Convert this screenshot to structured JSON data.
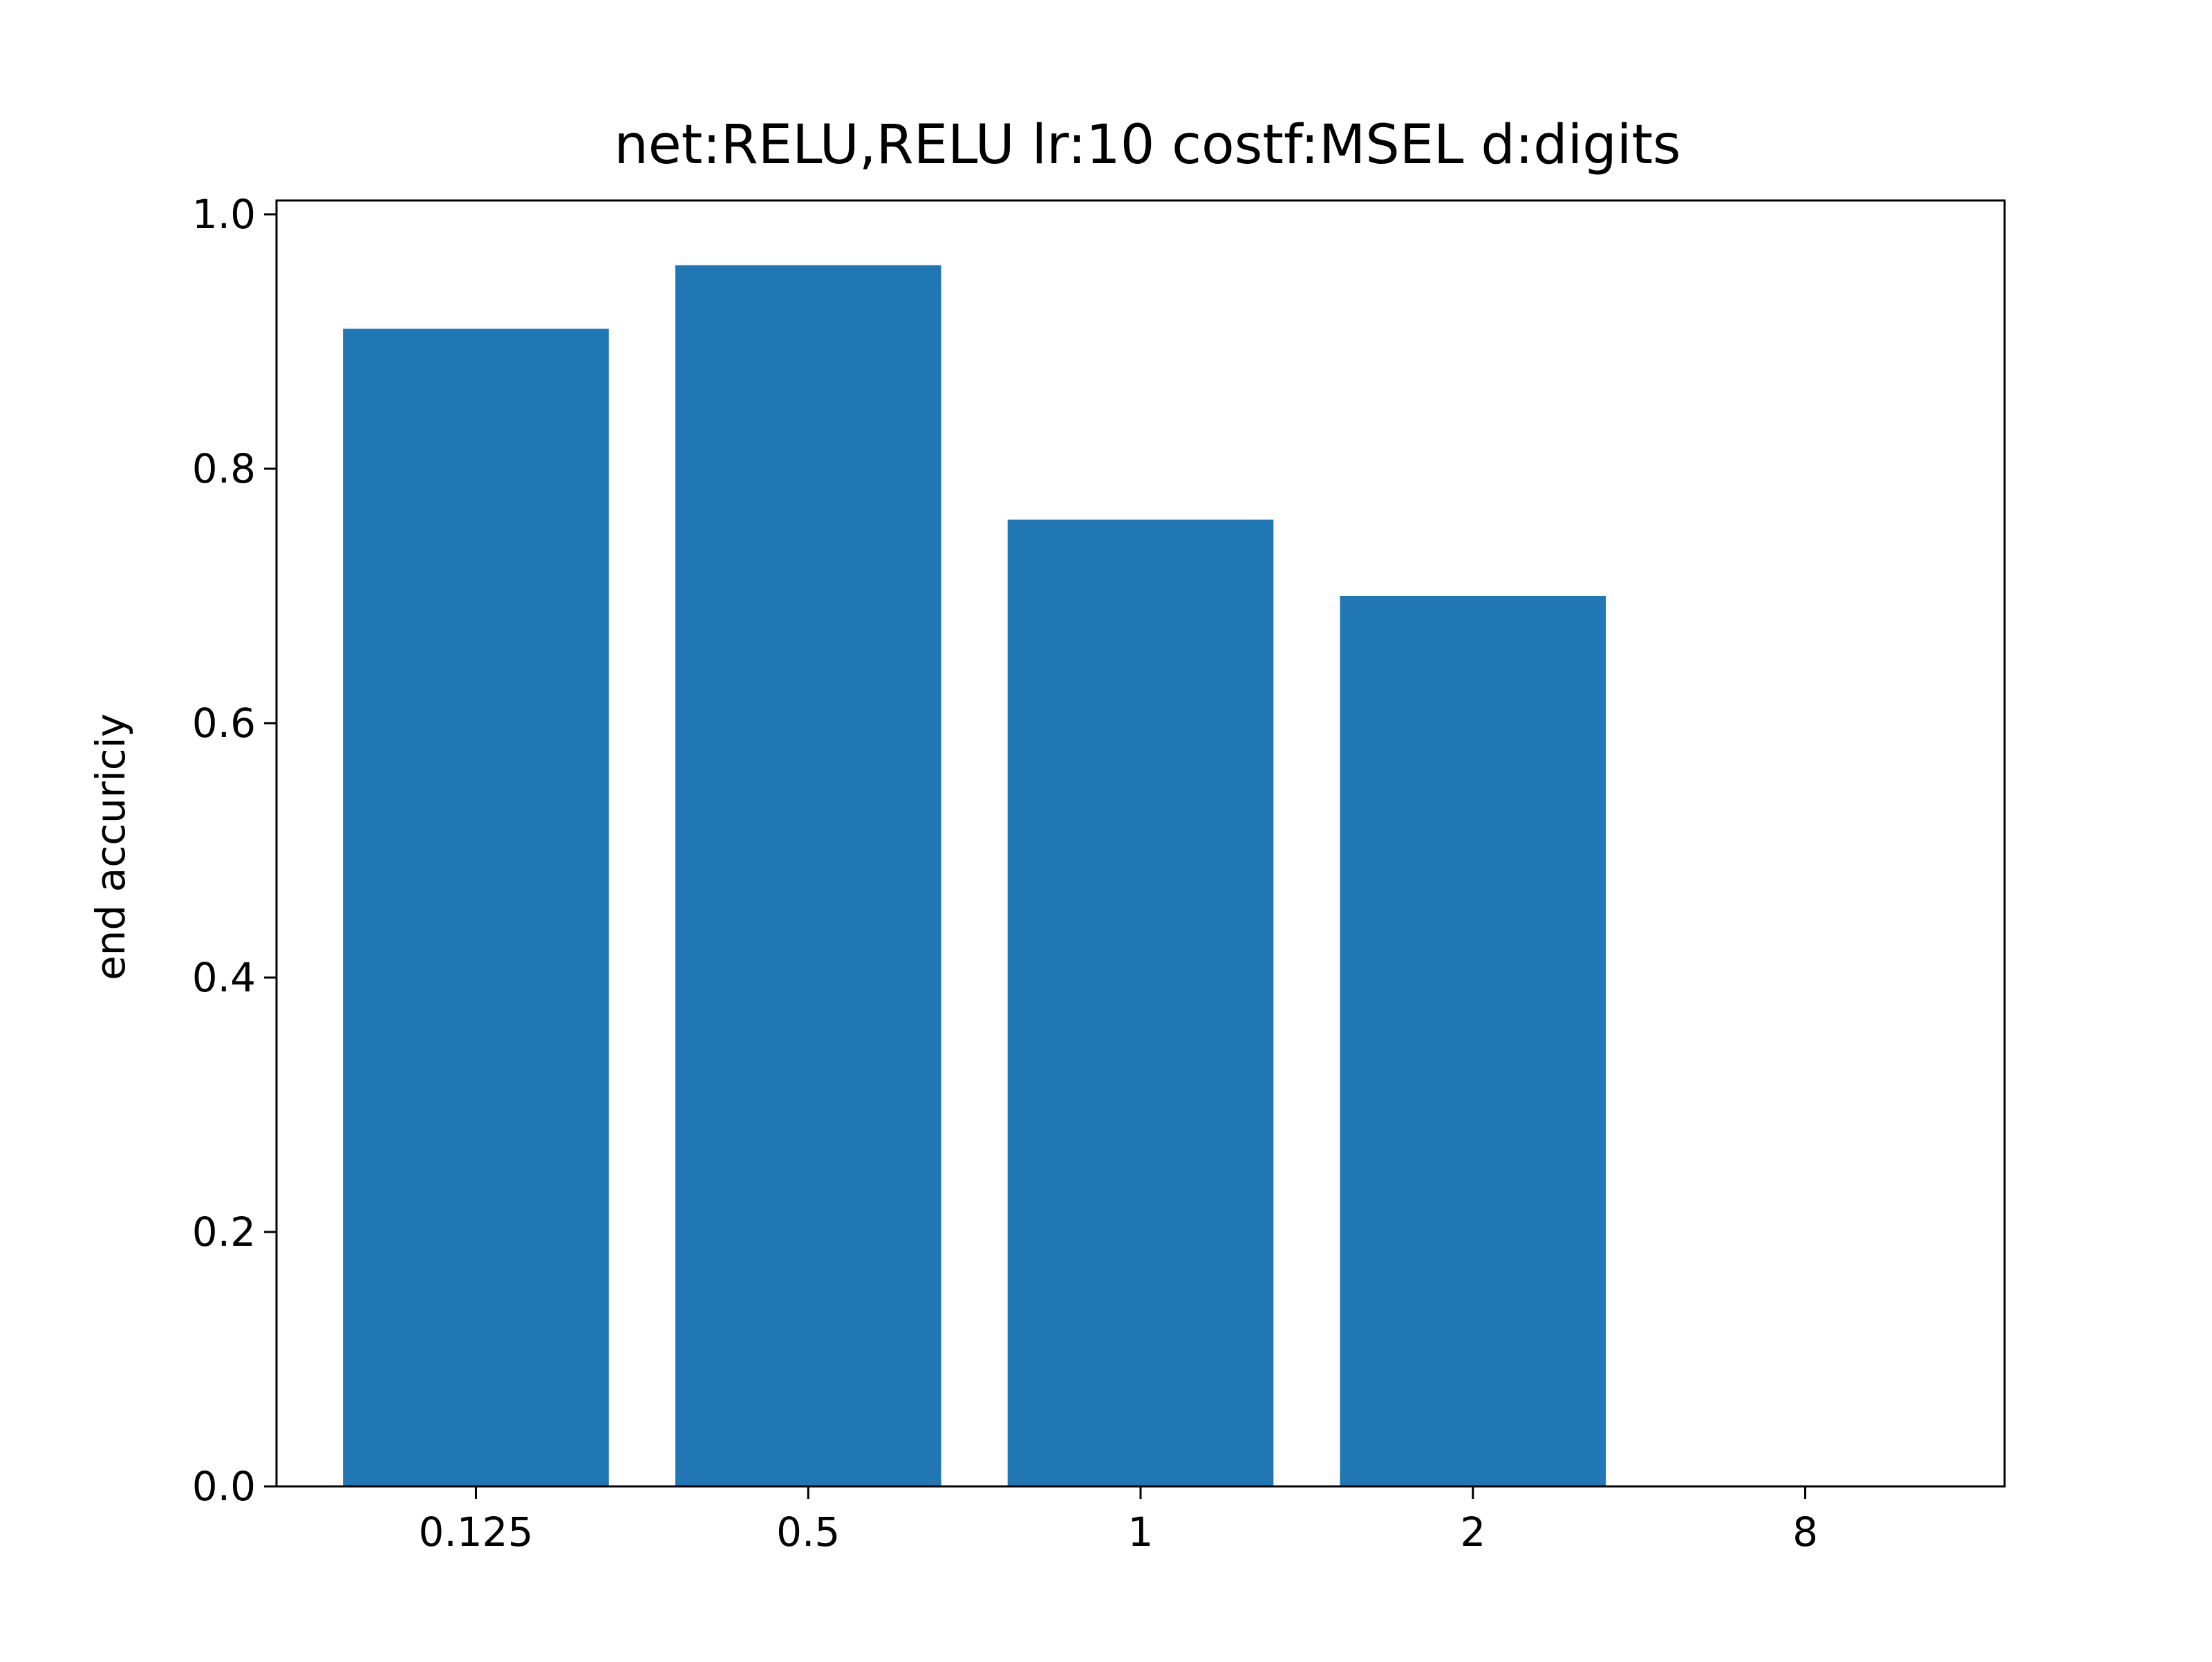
{
  "chart_data": {
    "type": "bar",
    "title": "net:RELU,RELU lr:10 costf:MSEL d:digits",
    "xlabel": "",
    "ylabel": "end accuriciy",
    "categories": [
      "0.125",
      "0.5",
      "1",
      "2",
      "8"
    ],
    "values": [
      0.91,
      0.96,
      0.76,
      0.7,
      0.0
    ],
    "ylim": [
      0.0,
      1.0
    ],
    "yticks": [
      "0.0",
      "0.2",
      "0.4",
      "0.6",
      "0.8",
      "1.0"
    ],
    "grid": false,
    "legend": "none",
    "colors": {
      "bar": "#2077b4",
      "axis": "#000000",
      "background": "#ffffff"
    }
  }
}
